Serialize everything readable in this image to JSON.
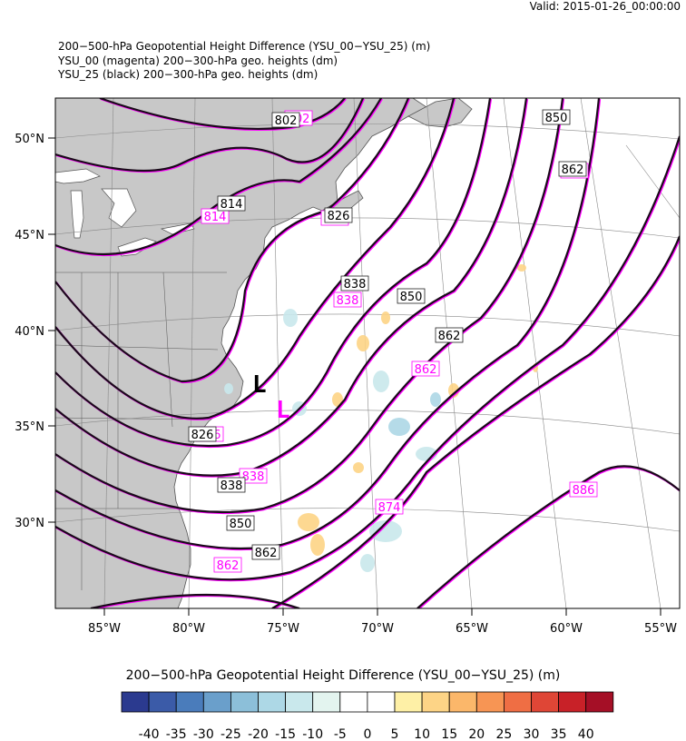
{
  "valid": "Valid: 2015-01-26_00:00:00",
  "titles": [
    "200−500-hPa Geopotential Height Difference (YSU_00−YSU_25)   (m)",
    "YSU_00 (magenta) 200−300-hPa geo. heights   (dm)",
    "YSU_25 (black) 200−300-hPa geo. heights   (dm)"
  ],
  "lat_labels": [
    "50°N",
    "45°N",
    "40°N",
    "35°N",
    "30°N"
  ],
  "lon_labels": [
    "85°W",
    "80°W",
    "75°W",
    "70°W",
    "65°W",
    "60°W",
    "55°W"
  ],
  "contour_labels_black": [
    "802",
    "814",
    "826",
    "838",
    "850",
    "862",
    "826",
    "838",
    "850",
    "862",
    "850",
    "862",
    "862"
  ],
  "contour_labels_magenta": [
    "802",
    "814",
    "826",
    "838",
    "862",
    "826",
    "838",
    "862",
    "874",
    "886",
    "862"
  ],
  "low_black": "L",
  "low_magenta": "L",
  "colorbar": {
    "title": "200−500-hPa Geopotential Height Difference (YSU_00−YSU_25)  (m)",
    "ticks": [
      "-40",
      "-35",
      "-30",
      "-25",
      "-20",
      "-15",
      "-10",
      "-5",
      "0",
      "5",
      "10",
      "15",
      "20",
      "25",
      "30",
      "35",
      "40"
    ],
    "colors": [
      "#2b3a8f",
      "#3b5ba8",
      "#4a7cbb",
      "#6a9fcb",
      "#8cbfd9",
      "#add8e6",
      "#c9e8ec",
      "#e3f4ef",
      "#ffffff",
      "#ffffff",
      "#fef0a6",
      "#fdd486",
      "#fbb76a",
      "#f79554",
      "#ef6e44",
      "#df4636",
      "#c82128",
      "#a50f26"
    ]
  },
  "colors": {
    "black_contour": "#1a0a1a",
    "magenta_contour": "#ff00ff",
    "land": "#c8c8c8"
  }
}
